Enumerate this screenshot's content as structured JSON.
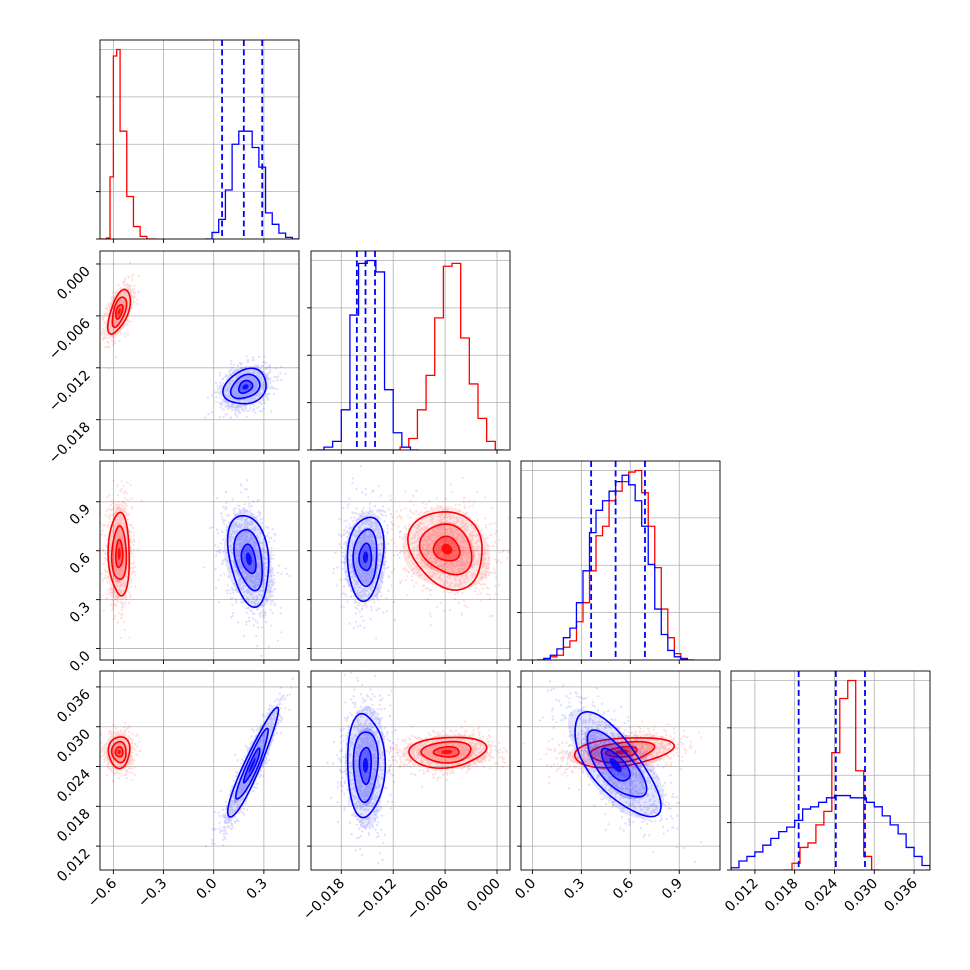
{
  "chart_data": {
    "type": "corner",
    "title": "",
    "series": [
      {
        "name": "",
        "color": "#ff0000",
        "hist1d": [
          {
            "param": 0,
            "bin_edges": [
              -0.68,
              -0.66,
              -0.64,
              -0.62,
              -0.6,
              -0.58,
              -0.56,
              -0.54,
              -0.52,
              -0.5,
              -0.48,
              -0.46,
              -0.44,
              -0.42,
              -0.4,
              -0.38,
              -0.36,
              -0.34
            ],
            "counts": [
              0,
              0,
              3,
              190,
              560,
              580,
              330,
              330,
              130,
              130,
              38,
              38,
              8,
              8,
              0,
              0,
              0
            ]
          },
          {
            "param": 1,
            "bin_edges": [
              -0.0202,
              -0.0192,
              -0.0182,
              -0.0172,
              -0.0162,
              -0.0152,
              -0.0142,
              -0.0132,
              -0.0122,
              -0.0112,
              -0.0102,
              -0.0092,
              -0.0082,
              -0.0072,
              -0.0062,
              -0.0052,
              -0.0042,
              -0.0032,
              -0.0022,
              -0.0012,
              -0.0002,
              0.0008
            ],
            "counts": [
              0,
              0,
              0,
              0,
              0,
              0,
              0,
              0,
              0,
              10,
              40,
              140,
              260,
              460,
              640,
              650,
              390,
              230,
              110,
              30,
              0
            ]
          },
          {
            "param": 2,
            "bin_edges": [
              0.03,
              0.07,
              0.11,
              0.15,
              0.19,
              0.23,
              0.27,
              0.31,
              0.35,
              0.39,
              0.43,
              0.47,
              0.51,
              0.55,
              0.59,
              0.63,
              0.67,
              0.71,
              0.75,
              0.79,
              0.83,
              0.87,
              0.91,
              0.95,
              0.99
            ],
            "counts": [
              0,
              4,
              10,
              15,
              40,
              60,
              120,
              180,
              280,
              390,
              420,
              500,
              530,
              560,
              590,
              595,
              525,
              420,
              290,
              160,
              70,
              20,
              5,
              0
            ]
          },
          {
            "param": 3,
            "bin_edges": [
              0.0164,
              0.0176,
              0.0188,
              0.02,
              0.0212,
              0.0224,
              0.0236,
              0.0248,
              0.026,
              0.0272,
              0.0284,
              0.0296,
              0.0308
            ],
            "counts": [
              0,
              15,
              50,
              60,
              100,
              130,
              260,
              380,
              420,
              220,
              30,
              0
            ]
          }
        ],
        "contours": [
          {
            "params": [
              0,
              1
            ],
            "center": [
              -0.565,
              -0.0055
            ],
            "spread": [
              0.031,
              0.0012
            ],
            "rho": 0.55
          },
          {
            "params": [
              0,
              2
            ],
            "center": [
              -0.565,
              0.58
            ],
            "spread": [
              0.03,
              0.12
            ],
            "rho": 0.0
          },
          {
            "params": [
              1,
              2
            ],
            "center": [
              -0.0058,
              0.61
            ],
            "spread": [
              0.0021,
              0.11
            ],
            "rho": -0.15
          },
          {
            "params": [
              0,
              3
            ],
            "center": [
              -0.565,
              0.0262
            ],
            "spread": [
              0.031,
              0.0011
            ],
            "rho": 0.0
          },
          {
            "params": [
              1,
              3
            ],
            "center": [
              -0.0058,
              0.0262
            ],
            "spread": [
              0.0021,
              0.0011
            ],
            "rho": 0.1
          },
          {
            "params": [
              2,
              3
            ],
            "center": [
              0.55,
              0.0262
            ],
            "spread": [
              0.14,
              0.0011
            ],
            "rho": 0.3
          }
        ]
      },
      {
        "name": "",
        "color": "#0000ff",
        "quantiles": [
          [
            0.05,
            0.18,
            0.29
          ],
          [
            -0.0162,
            -0.0152,
            -0.0141
          ],
          [
            0.36,
            0.51,
            0.69
          ],
          [
            0.0186,
            0.0242,
            0.0286
          ]
        ],
        "hist1d": [
          {
            "param": 0,
            "bin_edges": [
              -0.05,
              -0.01,
              0.03,
              0.07,
              0.11,
              0.15,
              0.19,
              0.23,
              0.27,
              0.31,
              0.35,
              0.39,
              0.43,
              0.47,
              0.51
            ],
            "counts": [
              0,
              20,
              60,
              150,
              290,
              330,
              330,
              280,
              220,
              80,
              45,
              18,
              5,
              0
            ]
          },
          {
            "param": 1,
            "bin_edges": [
              -0.021,
              -0.02,
              -0.019,
              -0.018,
              -0.017,
              -0.016,
              -0.015,
              -0.014,
              -0.013,
              -0.012,
              -0.011,
              -0.01,
              -0.009
            ],
            "counts": [
              0,
              10,
              30,
              140,
              470,
              650,
              660,
              620,
              210,
              60,
              10,
              0
            ]
          },
          {
            "param": 2,
            "bin_edges": [
              0.03,
              0.07,
              0.11,
              0.15,
              0.19,
              0.23,
              0.27,
              0.31,
              0.35,
              0.39,
              0.43,
              0.47,
              0.51,
              0.55,
              0.59,
              0.63,
              0.67,
              0.71,
              0.75,
              0.79,
              0.83,
              0.87,
              0.91,
              0.95,
              0.99
            ],
            "counts": [
              0,
              5,
              15,
              35,
              70,
              100,
              180,
              280,
              400,
              470,
              500,
              530,
              560,
              580,
              550,
              500,
              420,
              300,
              160,
              80,
              30,
              10,
              3,
              0
            ]
          },
          {
            "param": 3,
            "bin_edges": [
              0.0084,
              0.0096,
              0.0108,
              0.012,
              0.0132,
              0.0144,
              0.0156,
              0.0168,
              0.018,
              0.0192,
              0.0204,
              0.0216,
              0.0228,
              0.024,
              0.0252,
              0.0264,
              0.0276,
              0.0288,
              0.03,
              0.0312,
              0.0324,
              0.0336,
              0.0348,
              0.036,
              0.0372,
              0.0384
            ],
            "counts": [
              5,
              20,
              30,
              40,
              55,
              70,
              85,
              95,
              110,
              135,
              140,
              150,
              160,
              165,
              165,
              160,
              160,
              150,
              140,
              120,
              100,
              80,
              50,
              30,
              10
            ]
          }
        ],
        "contours": [
          {
            "params": [
              0,
              1
            ],
            "center": [
              0.19,
              -0.0142
            ],
            "spread": [
              0.06,
              0.001
            ],
            "rho": 0.25
          },
          {
            "params": [
              0,
              2
            ],
            "center": [
              0.21,
              0.55
            ],
            "spread": [
              0.06,
              0.13
            ],
            "rho": -0.3
          },
          {
            "params": [
              1,
              2
            ],
            "center": [
              -0.0152,
              0.56
            ],
            "spread": [
              0.001,
              0.12
            ],
            "rho": 0.1
          },
          {
            "params": [
              0,
              3
            ],
            "center": [
              0.23,
              0.0242
            ],
            "spread": [
              0.07,
              0.0038
            ],
            "rho": 0.93
          },
          {
            "params": [
              1,
              3
            ],
            "center": [
              -0.0152,
              0.0242
            ],
            "spread": [
              0.001,
              0.0038
            ],
            "rho": 0.0
          },
          {
            "params": [
              2,
              3
            ],
            "center": [
              0.51,
              0.0242
            ],
            "spread": [
              0.125,
              0.0036
            ],
            "rho": -0.7
          }
        ]
      }
    ],
    "params": [
      {
        "range": [
          -0.68,
          0.51
        ],
        "ticks": [
          -0.6,
          -0.3,
          0.0,
          0.3
        ],
        "tick_labels": [
          "−0.6",
          "−0.3",
          "0.0",
          "0.3"
        ]
      },
      {
        "range": [
          -0.0215,
          0.0015
        ],
        "ticks": [
          -0.018,
          -0.012,
          -0.006,
          0.0
        ],
        "tick_labels": [
          "−0.018",
          "−0.012",
          "−0.006",
          "0.000"
        ]
      },
      {
        "range": [
          -0.07,
          1.15
        ],
        "ticks": [
          0.0,
          0.3,
          0.6,
          0.9
        ],
        "tick_labels": [
          "0.0",
          "0.3",
          "0.6",
          "0.9"
        ]
      },
      {
        "range": [
          0.0084,
          0.0384
        ],
        "ticks": [
          0.012,
          0.018,
          0.024,
          0.03,
          0.036
        ],
        "tick_labels": [
          "0.012",
          "0.018",
          "0.024",
          "0.030",
          "0.036"
        ]
      }
    ],
    "hist_y_ticks": 4,
    "grid": true,
    "xlabel": "",
    "ylabel": ""
  }
}
